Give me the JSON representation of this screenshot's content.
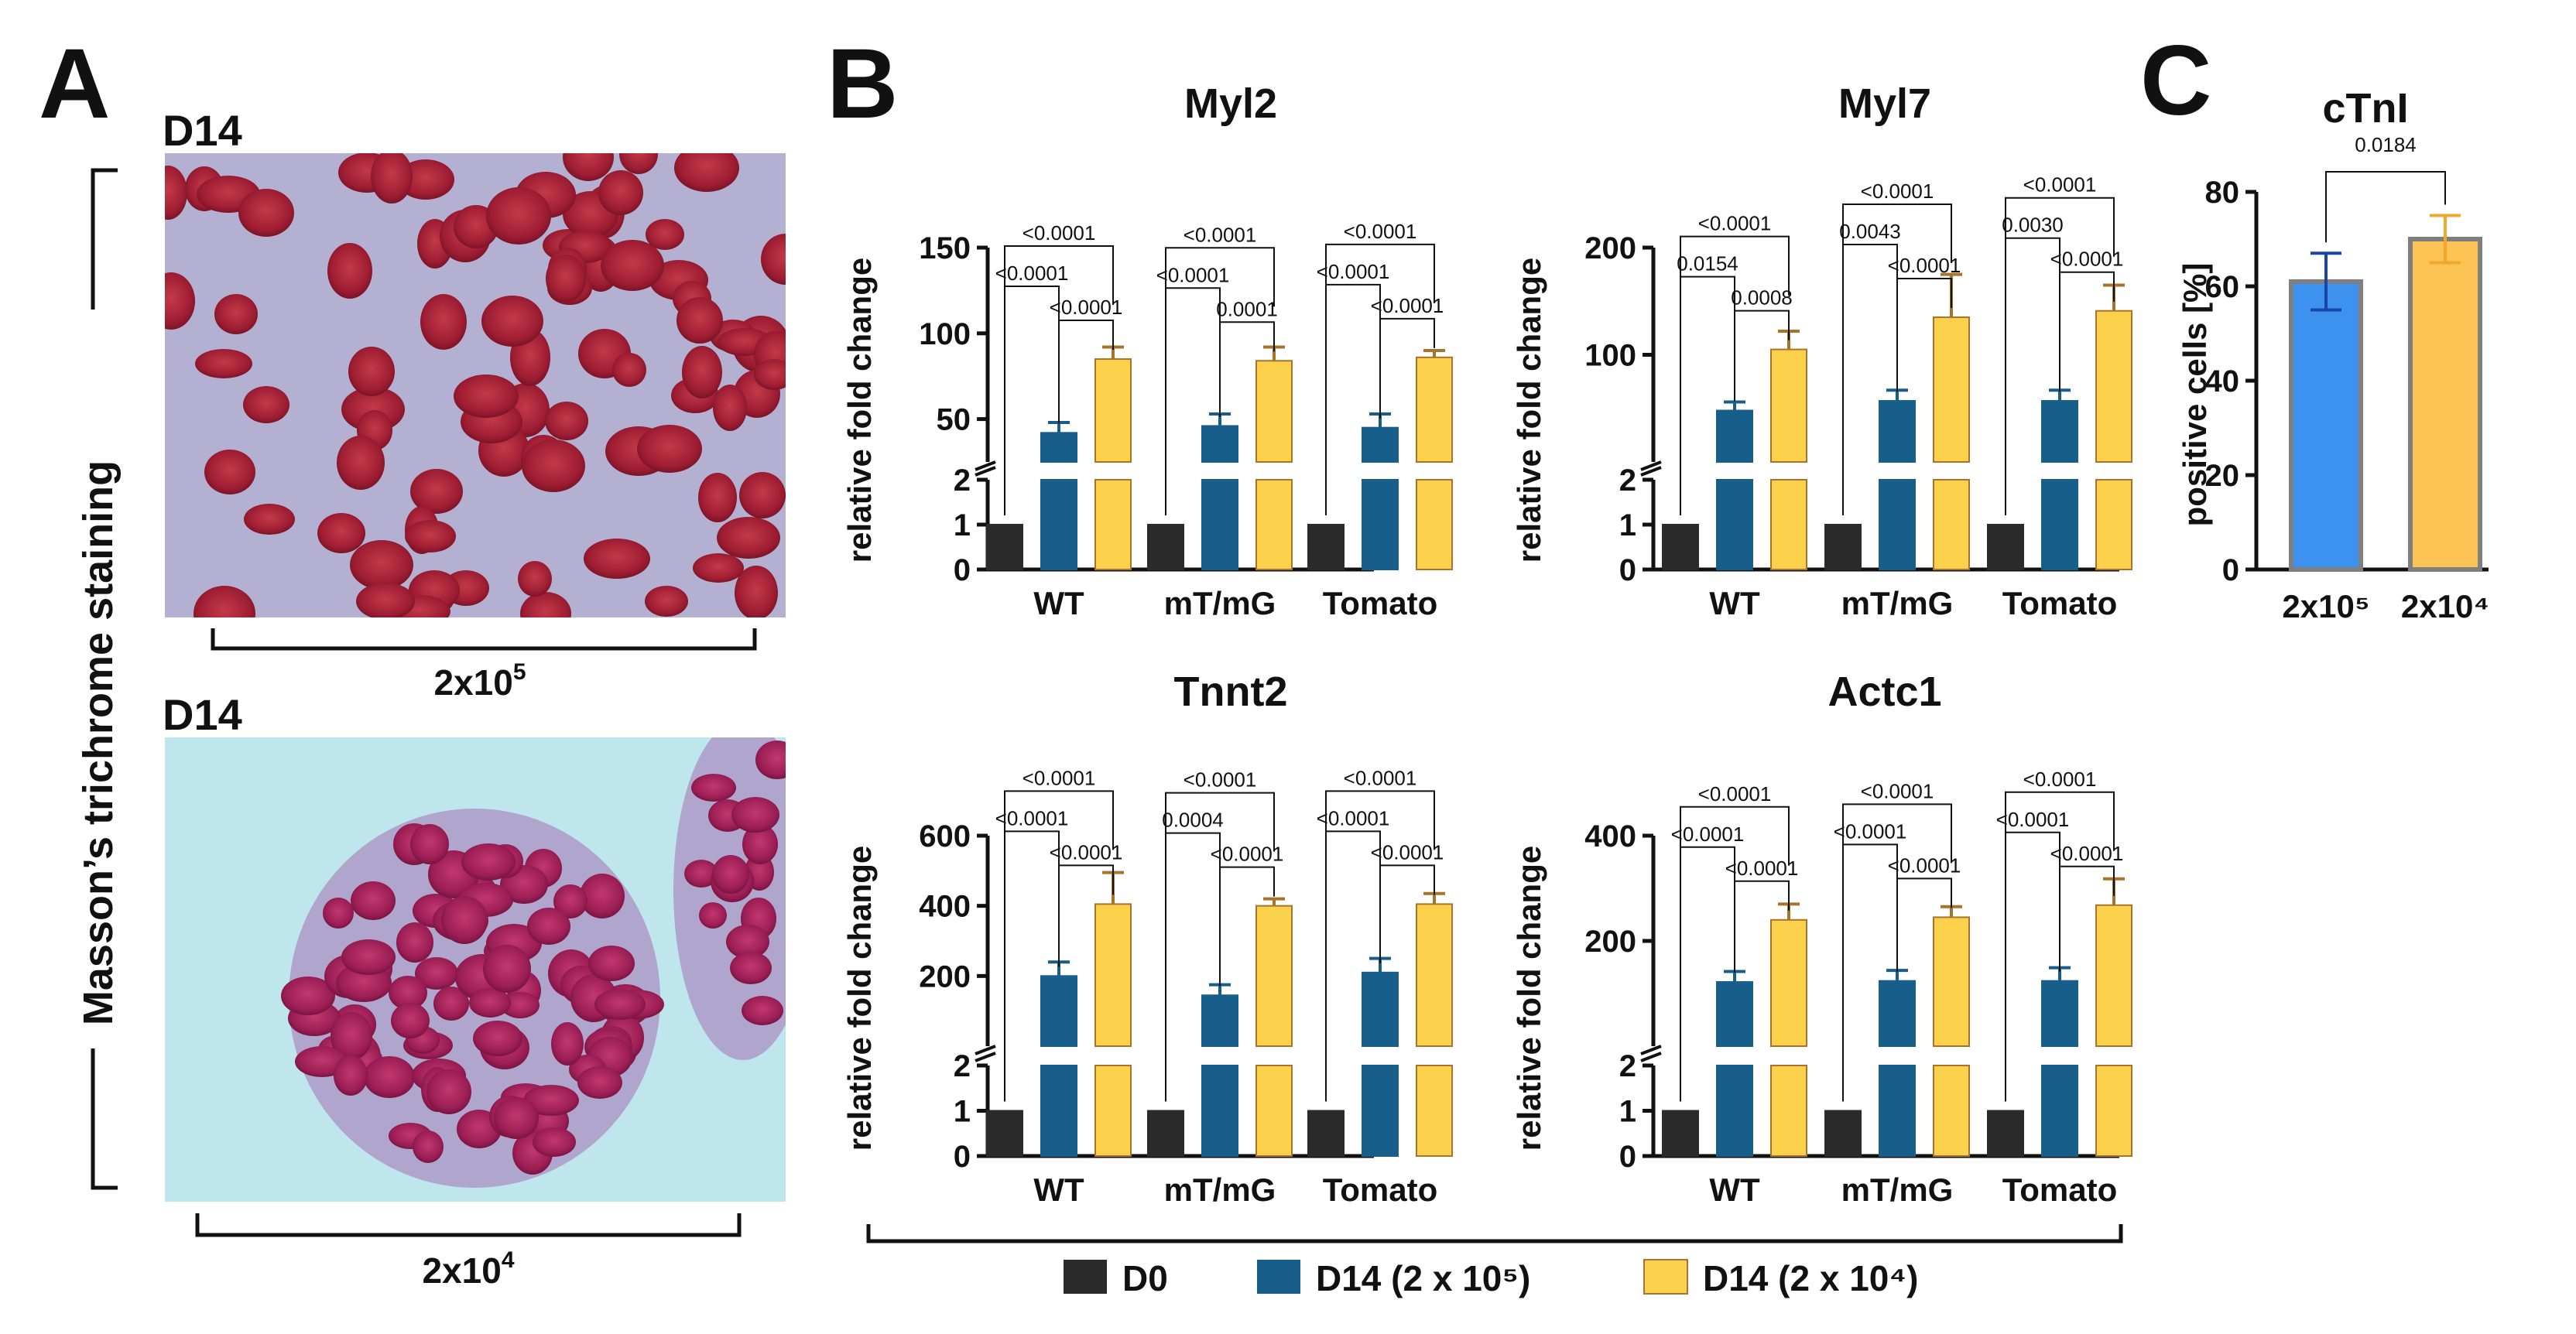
{
  "panel_a": {
    "letter": "A",
    "vertical_label": "Masson’s trichrome staining",
    "images": [
      {
        "day_label": "D14",
        "caption_base": "2x10",
        "caption_exp": "5"
      },
      {
        "day_label": "D14",
        "caption_base": "2x10",
        "caption_exp": "4"
      }
    ]
  },
  "panel_b": {
    "letter": "B"
  },
  "panel_c": {
    "letter": "C"
  },
  "legend": {
    "items": [
      {
        "label": "D0",
        "color": "#2b2b2b"
      },
      {
        "label": "D14 (2 x 10⁵)",
        "color": "#185e8b"
      },
      {
        "label": "D14 (2 x 10⁴)",
        "color": "#fbd04a"
      }
    ]
  },
  "colors": {
    "d0": "#2b2b2b",
    "d14_high": "#185e8b",
    "d14_low": "#fbd04a",
    "d14_high_err": "#185e8b",
    "d14_low_err": "#a8742a",
    "c_blue": "#3d92f0",
    "c_yellow": "#fbc254",
    "c_edge": "#7f7f7f",
    "tissue_bg": "#bfe6ec",
    "tissue_red": "#a3203a",
    "tissue_magenta": "#a51e5e"
  },
  "chart_data": [
    {
      "type": "bar",
      "title": "Myl2",
      "ylabel": "relative fold change",
      "categories": [
        "WT",
        "mT/mG",
        "Tomato"
      ],
      "y_broken": true,
      "lower_ylim": [
        0,
        2
      ],
      "lower_ticks": [
        0,
        1,
        2
      ],
      "upper_ylim": [
        25,
        150
      ],
      "upper_ticks": [
        50,
        100,
        150
      ],
      "series": [
        {
          "name": "D0",
          "values": [
            1,
            1,
            1
          ],
          "errors": [
            0,
            0,
            0
          ]
        },
        {
          "name": "D14 (2 x 10^5)",
          "values": [
            42,
            46,
            45
          ],
          "errors": [
            6,
            7,
            8
          ]
        },
        {
          "name": "D14 (2 x 10^4)",
          "values": [
            85,
            84,
            86
          ],
          "errors": [
            7,
            8,
            4
          ]
        }
      ],
      "pvalues": [
        {
          "category": "WT",
          "d0_vs_high": "<0.0001",
          "d0_vs_low": "<0.0001",
          "high_vs_low": "<0.0001"
        },
        {
          "category": "mT/mG",
          "d0_vs_high": "<0.0001",
          "d0_vs_low": "<0.0001",
          "high_vs_low": "0.0001"
        },
        {
          "category": "Tomato",
          "d0_vs_high": "<0.0001",
          "d0_vs_low": "<0.0001",
          "high_vs_low": "<0.0001"
        }
      ]
    },
    {
      "type": "bar",
      "title": "Myl7",
      "ylabel": "relative fold change",
      "categories": [
        "WT",
        "mT/mG",
        "Tomato"
      ],
      "y_broken": true,
      "lower_ylim": [
        0,
        2
      ],
      "lower_ticks": [
        0,
        1,
        2
      ],
      "upper_ylim": [
        0,
        200
      ],
      "upper_ticks": [
        100,
        200
      ],
      "series": [
        {
          "name": "D0",
          "values": [
            1,
            1,
            1
          ],
          "errors": [
            0,
            0,
            0
          ]
        },
        {
          "name": "D14 (2 x 10^5)",
          "values": [
            48,
            57,
            57
          ],
          "errors": [
            8,
            10,
            10
          ]
        },
        {
          "name": "D14 (2 x 10^4)",
          "values": [
            105,
            135,
            141
          ],
          "errors": [
            17,
            40,
            24
          ]
        }
      ],
      "pvalues": [
        {
          "category": "WT",
          "d0_vs_high": "0.0154",
          "d0_vs_low": "<0.0001",
          "high_vs_low": "0.0008"
        },
        {
          "category": "mT/mG",
          "d0_vs_high": "0.0043",
          "d0_vs_low": "<0.0001",
          "high_vs_low": "<0.0001"
        },
        {
          "category": "Tomato",
          "d0_vs_high": "0.0030",
          "d0_vs_low": "<0.0001",
          "high_vs_low": "<0.0001"
        }
      ]
    },
    {
      "type": "bar",
      "title": "Tnnt2",
      "ylabel": "relative fold change",
      "categories": [
        "WT",
        "mT/mG",
        "Tomato"
      ],
      "y_broken": true,
      "lower_ylim": [
        0,
        2
      ],
      "lower_ticks": [
        0,
        1,
        2
      ],
      "upper_ylim": [
        0,
        600
      ],
      "upper_ticks": [
        200,
        400,
        600
      ],
      "series": [
        {
          "name": "D0",
          "values": [
            1,
            1,
            1
          ],
          "errors": [
            0,
            0,
            0
          ]
        },
        {
          "name": "D14 (2 x 10^5)",
          "values": [
            200,
            145,
            210
          ],
          "errors": [
            40,
            30,
            40
          ]
        },
        {
          "name": "D14 (2 x 10^4)",
          "values": [
            405,
            400,
            405
          ],
          "errors": [
            90,
            20,
            30
          ]
        }
      ],
      "pvalues": [
        {
          "category": "WT",
          "d0_vs_high": "<0.0001",
          "d0_vs_low": "<0.0001",
          "high_vs_low": "<0.0001"
        },
        {
          "category": "mT/mG",
          "d0_vs_high": "0.0004",
          "d0_vs_low": "<0.0001",
          "high_vs_low": "<0.0001"
        },
        {
          "category": "Tomato",
          "d0_vs_high": "<0.0001",
          "d0_vs_low": "<0.0001",
          "high_vs_low": "<0.0001"
        }
      ]
    },
    {
      "type": "bar",
      "title": "Actc1",
      "ylabel": "relative fold change",
      "categories": [
        "WT",
        "mT/mG",
        "Tomato"
      ],
      "y_broken": true,
      "lower_ylim": [
        0,
        2
      ],
      "lower_ticks": [
        0,
        1,
        2
      ],
      "upper_ylim": [
        0,
        400
      ],
      "upper_ticks": [
        200,
        400
      ],
      "series": [
        {
          "name": "D0",
          "values": [
            1,
            1,
            1
          ],
          "errors": [
            0,
            0,
            0
          ]
        },
        {
          "name": "D14 (2 x 10^5)",
          "values": [
            122,
            124,
            124
          ],
          "errors": [
            20,
            20,
            25
          ]
        },
        {
          "name": "D14 (2 x 10^4)",
          "values": [
            240,
            245,
            268
          ],
          "errors": [
            30,
            20,
            50
          ]
        }
      ],
      "pvalues": [
        {
          "category": "WT",
          "d0_vs_high": "<0.0001",
          "d0_vs_low": "<0.0001",
          "high_vs_low": "<0.0001"
        },
        {
          "category": "mT/mG",
          "d0_vs_high": "<0.0001",
          "d0_vs_low": "<0.0001",
          "high_vs_low": "<0.0001"
        },
        {
          "category": "Tomato",
          "d0_vs_high": "<0.0001",
          "d0_vs_low": "<0.0001",
          "high_vs_low": "<0.0001"
        }
      ]
    },
    {
      "type": "bar",
      "title": "cTnI",
      "ylabel": "positive cells [%]",
      "categories": [
        "2x10⁵",
        "2x10⁴"
      ],
      "ylim": [
        0,
        80
      ],
      "ticks": [
        0,
        20,
        40,
        60,
        80
      ],
      "values": [
        61,
        70
      ],
      "errors": [
        6,
        5
      ],
      "pvalue": "0.0184"
    }
  ]
}
